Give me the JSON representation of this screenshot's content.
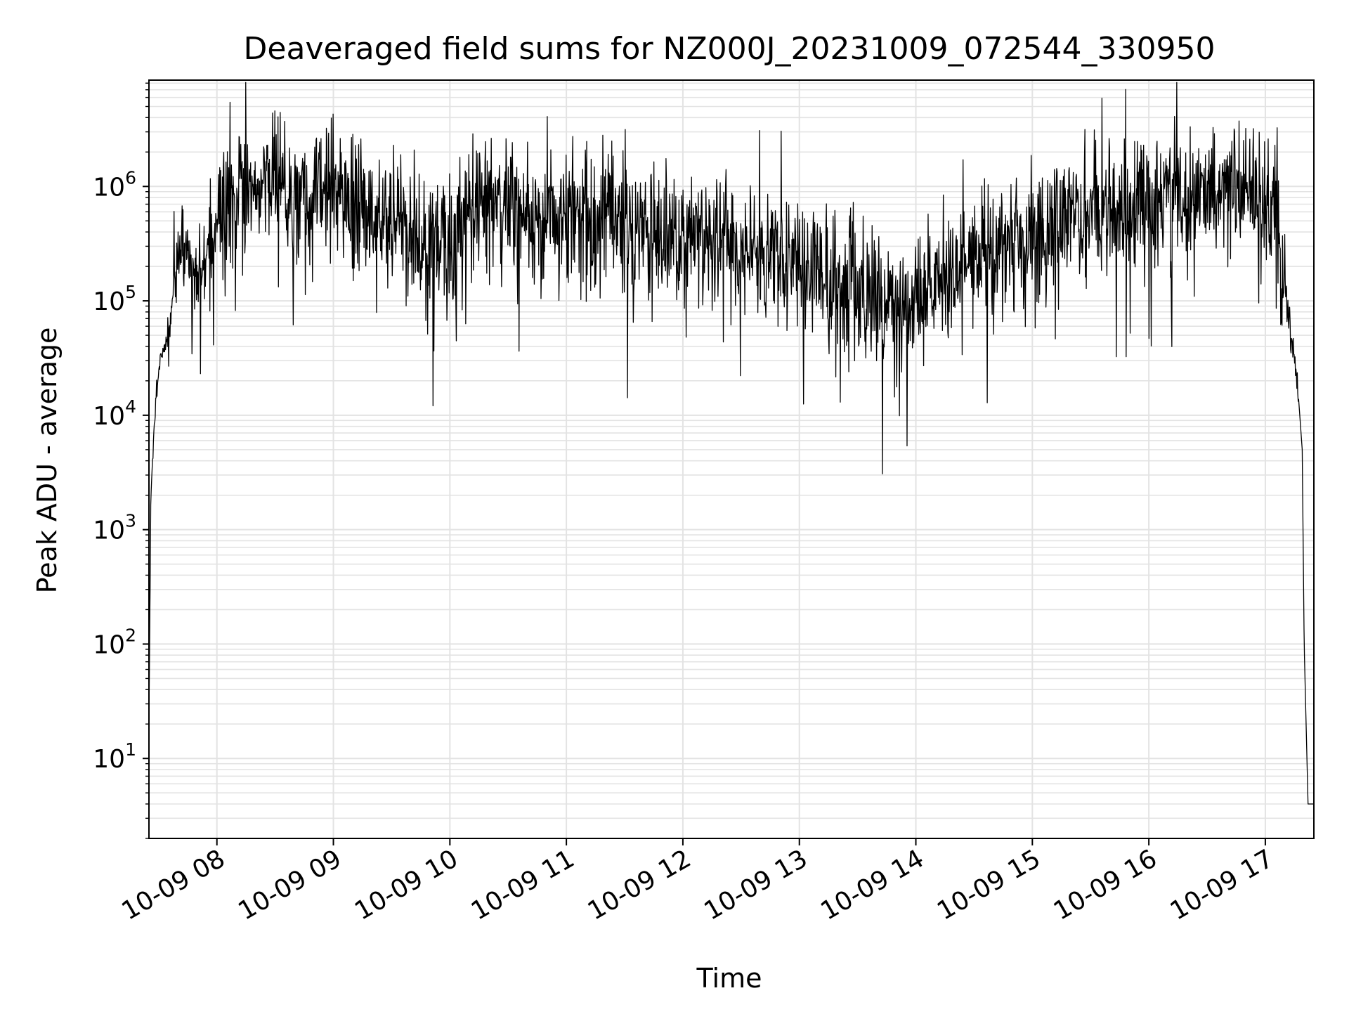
{
  "chart_data": {
    "type": "line",
    "title": "Deaveraged field sums for NZ000J_20231009_072544_330950",
    "xlabel": "Time",
    "ylabel": "Peak ADU - average",
    "yscale": "log",
    "ylim": [
      2,
      8500000
    ],
    "xlim": [
      "2023-10-09 07:25",
      "2023-10-09 17:25"
    ],
    "grid": true,
    "line_color": "#000000",
    "grid_color": "#e3e3e3",
    "x_ticks": [
      {
        "t": "2023-10-09 08:00",
        "label": "10-09 08"
      },
      {
        "t": "2023-10-09 09:00",
        "label": "10-09 09"
      },
      {
        "t": "2023-10-09 10:00",
        "label": "10-09 10"
      },
      {
        "t": "2023-10-09 11:00",
        "label": "10-09 11"
      },
      {
        "t": "2023-10-09 12:00",
        "label": "10-09 12"
      },
      {
        "t": "2023-10-09 13:00",
        "label": "10-09 13"
      },
      {
        "t": "2023-10-09 14:00",
        "label": "10-09 14"
      },
      {
        "t": "2023-10-09 15:00",
        "label": "10-09 15"
      },
      {
        "t": "2023-10-09 16:00",
        "label": "10-09 16"
      },
      {
        "t": "2023-10-09 17:00",
        "label": "10-09 17"
      }
    ],
    "y_ticks": [
      {
        "value": 10,
        "base": "10",
        "exp": "1"
      },
      {
        "value": 100,
        "base": "10",
        "exp": "2"
      },
      {
        "value": 1000,
        "base": "10",
        "exp": "3"
      },
      {
        "value": 10000,
        "base": "10",
        "exp": "4"
      },
      {
        "value": 100000,
        "base": "10",
        "exp": "5"
      },
      {
        "value": 1000000,
        "base": "10",
        "exp": "6"
      }
    ],
    "series": [
      {
        "x": [
          "2023-10-09 07:25",
          "2023-10-09 07:26",
          "2023-10-09 07:28",
          "2023-10-09 07:30",
          "2023-10-09 07:33",
          "2023-10-09 07:36",
          "2023-10-09 07:40",
          "2023-10-09 07:45",
          "2023-10-09 07:48",
          "2023-10-09 07:52",
          "2023-10-09 07:56",
          "2023-10-09 08:00",
          "2023-10-09 08:10",
          "2023-10-09 08:20",
          "2023-10-09 08:30",
          "2023-10-09 08:40",
          "2023-10-09 08:50",
          "2023-10-09 09:00",
          "2023-10-09 09:15",
          "2023-10-09 09:30",
          "2023-10-09 09:45",
          "2023-10-09 10:00",
          "2023-10-09 10:10",
          "2023-10-09 10:20",
          "2023-10-09 10:40",
          "2023-10-09 11:00",
          "2023-10-09 11:20",
          "2023-10-09 11:40",
          "2023-10-09 12:00",
          "2023-10-09 12:20",
          "2023-10-09 12:40",
          "2023-10-09 13:00",
          "2023-10-09 13:15",
          "2023-10-09 13:30",
          "2023-10-09 13:45",
          "2023-10-09 14:00",
          "2023-10-09 14:15",
          "2023-10-09 14:30",
          "2023-10-09 14:45",
          "2023-10-09 15:00",
          "2023-10-09 15:20",
          "2023-10-09 15:40",
          "2023-10-09 16:00",
          "2023-10-09 16:20",
          "2023-10-09 16:40",
          "2023-10-09 17:00",
          "2023-10-09 17:05",
          "2023-10-09 17:10",
          "2023-10-09 17:14",
          "2023-10-09 17:17",
          "2023-10-09 17:19",
          "2023-10-09 17:20",
          "2023-10-09 17:22",
          "2023-10-09 17:25"
        ],
        "y": [
          20,
          2000,
          10000,
          25000,
          40000,
          70000,
          350000,
          250000,
          150000,
          200000,
          300000,
          500000,
          800000,
          1000000,
          1100000,
          1000000,
          900000,
          900000,
          700000,
          500000,
          350000,
          300000,
          600000,
          800000,
          550000,
          500000,
          500000,
          450000,
          400000,
          300000,
          250000,
          200000,
          150000,
          120000,
          90000,
          100000,
          150000,
          250000,
          300000,
          400000,
          500000,
          600000,
          700000,
          800000,
          900000,
          800000,
          500000,
          150000,
          40000,
          15000,
          5000,
          100,
          4,
          4
        ]
      }
    ]
  }
}
